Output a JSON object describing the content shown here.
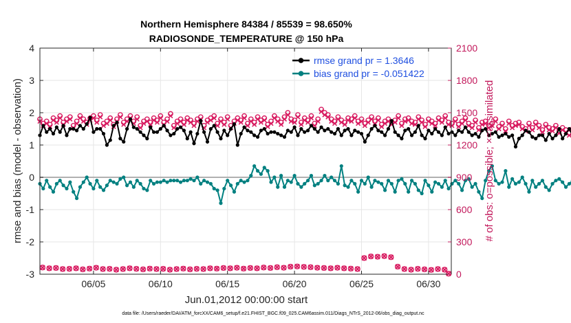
{
  "chart_data": {
    "type": "line",
    "title_line1": "Northern Hemisphere 84384 / 85539 = 98.650%",
    "title_line2": "RADIOSONDE_TEMPERATURE @ 150 hPa",
    "xlabel": "Jun.01,2012 00:00:00 start",
    "ylabel_left": "rmse and bias (model - observation)",
    "ylabel_right": "# of obs: o=possible; ×=assimilated",
    "footer": "data file: /Users/raeder/DAI/ATM_forcXX/CAM6_setup/f.e21.FHIST_BGC.f09_025.CAM6assim.011/Diags_NTrS_2012-06/obs_diag_output.nc",
    "x_range_days": [
      1,
      31.7
    ],
    "ylim_left": [
      -3,
      4
    ],
    "ylim_right": [
      0,
      2100
    ],
    "grid": true,
    "legend_position": "top-right",
    "x_ticks": [
      {
        "day": 5,
        "label": "06/05"
      },
      {
        "day": 10,
        "label": "06/10"
      },
      {
        "day": 15,
        "label": "06/15"
      },
      {
        "day": 20,
        "label": "06/20"
      },
      {
        "day": 25,
        "label": "06/25"
      },
      {
        "day": 30,
        "label": "06/30"
      }
    ],
    "y_ticks_left": [
      {
        "value": 4,
        "label": "4"
      },
      {
        "value": 3,
        "label": "3"
      },
      {
        "value": 2,
        "label": "2"
      },
      {
        "value": 1,
        "label": "1"
      },
      {
        "value": 0,
        "label": "0"
      },
      {
        "value": -1,
        "label": "-1"
      },
      {
        "value": -2,
        "label": "-2"
      },
      {
        "value": -3,
        "label": "-3"
      }
    ],
    "y_ticks_right": [
      {
        "value": 2100,
        "label": "2100"
      },
      {
        "value": 1800,
        "label": "1800"
      },
      {
        "value": 1500,
        "label": "1500"
      },
      {
        "value": 1200,
        "label": "1200"
      },
      {
        "value": 900,
        "label": "900"
      },
      {
        "value": 600,
        "label": "600"
      },
      {
        "value": 300,
        "label": "300"
      },
      {
        "value": 0,
        "label": "0"
      }
    ],
    "legend": [
      {
        "label": "rmse grand pr = 1.3646",
        "color": "#000000"
      },
      {
        "label": "bias grand pr = -0.051422",
        "color": "#008080"
      }
    ],
    "colors": {
      "rmse": "#000000",
      "bias": "#008080",
      "obs": "#d81b60",
      "zero_line": "#b0b0b0"
    },
    "series_x_start_day": 1.0,
    "series_x_step_days": 0.25,
    "rmse": [
      1.3,
      1.6,
      1.4,
      1.5,
      1.35,
      1.55,
      1.4,
      1.6,
      1.3,
      1.5,
      1.5,
      1.45,
      1.6,
      1.5,
      1.65,
      1.85,
      1.4,
      1.5,
      1.5,
      1.35,
      1.0,
      1.15,
      1.6,
      1.7,
      1.2,
      1.1,
      1.5,
      1.8,
      1.55,
      1.5,
      1.4,
      1.3,
      1.2,
      1.55,
      1.4,
      1.4,
      1.5,
      1.6,
      1.45,
      1.3,
      1.35,
      1.5,
      1.55,
      1.45,
      1.2,
      1.4,
      1.05,
      1.35,
      1.75,
      1.4,
      1.1,
      1.5,
      1.6,
      1.4,
      1.2,
      1.45,
      1.3,
      1.5,
      1.65,
      1.0,
      1.35,
      1.55,
      1.45,
      1.4,
      1.3,
      1.25,
      1.45,
      1.5,
      1.35,
      1.4,
      1.4,
      1.35,
      1.3,
      1.25,
      1.45,
      1.4,
      1.55,
      1.3,
      1.5,
      1.4,
      1.45,
      1.6,
      1.5,
      1.4,
      1.55,
      1.45,
      1.5,
      1.4,
      1.35,
      1.5,
      1.3,
      1.45,
      1.5,
      1.3,
      1.45,
      1.4,
      1.35,
      1.1,
      1.3,
      1.5,
      1.6,
      1.45,
      1.4,
      1.3,
      1.5,
      1.75,
      1.4,
      1.3,
      1.2,
      1.45,
      1.5,
      1.3,
      1.4,
      1.6,
      1.3,
      1.2,
      1.45,
      1.35,
      1.5,
      1.4,
      1.3,
      1.55,
      1.35,
      1.4,
      1.3,
      1.45,
      1.4,
      1.55,
      1.4,
      1.3,
      1.35,
      1.25,
      1.45,
      1.5,
      1.3,
      1.35,
      1.4,
      1.25,
      1.3,
      1.35,
      1.25,
      1.3,
      0.95,
      1.2,
      1.3,
      1.45,
      1.4,
      1.25,
      1.2,
      1.3,
      1.3,
      1.15,
      1.35,
      1.2,
      1.3,
      1.5,
      1.2,
      1.35,
      1.5,
      1.3,
      1.0,
      1.25,
      1.15,
      1.1
    ],
    "bias": [
      -0.2,
      -0.35,
      -0.1,
      -0.3,
      -0.45,
      -0.2,
      -0.1,
      -0.25,
      -0.35,
      -0.15,
      -0.45,
      -0.65,
      -0.3,
      -0.15,
      0.0,
      -0.2,
      -0.35,
      -0.1,
      -0.3,
      -0.4,
      -0.25,
      -0.1,
      -0.15,
      -0.2,
      -0.05,
      0.0,
      -0.25,
      -0.15,
      -0.3,
      -0.1,
      -0.2,
      -0.35,
      -0.4,
      -0.1,
      -0.2,
      -0.15,
      -0.15,
      -0.1,
      -0.15,
      -0.1,
      -0.1,
      -0.1,
      -0.15,
      -0.1,
      -0.1,
      -0.05,
      -0.1,
      0.0,
      -0.2,
      -0.1,
      -0.15,
      -0.2,
      -0.35,
      -0.4,
      -0.8,
      -0.35,
      -0.1,
      -0.25,
      -0.45,
      -0.2,
      -0.1,
      -0.15,
      -0.1,
      0.05,
      0.35,
      0.2,
      0.1,
      0.3,
      0.2,
      -0.15,
      0.0,
      -0.3,
      0.05,
      -0.3,
      -0.1,
      -0.15,
      0.05,
      -0.2,
      -0.3,
      -0.2,
      -0.1,
      0.05,
      -0.25,
      -0.2,
      -0.1,
      0.05,
      -0.1,
      0.0,
      -0.1,
      -0.2,
      0.35,
      -0.25,
      -0.3,
      -0.1,
      -0.2,
      -0.45,
      -0.1,
      -0.2,
      0.0,
      -0.3,
      -0.1,
      -0.15,
      -0.2,
      -0.4,
      -0.1,
      -0.2,
      -0.45,
      -0.1,
      -0.05,
      -0.2,
      -0.45,
      -0.1,
      -0.2,
      -0.4,
      -0.5,
      -0.1,
      -0.25,
      -0.45,
      -0.15,
      -0.2,
      -0.3,
      -0.1,
      -0.35,
      -0.2,
      -0.1,
      -0.2,
      -0.4,
      -0.1,
      -0.05,
      -0.3,
      -0.2,
      -0.45,
      -0.65,
      -0.1,
      0.2,
      0.35,
      -0.1,
      -0.2,
      -0.15,
      0.2,
      -0.3,
      -0.05,
      -0.2,
      -0.15,
      0.0,
      -0.2,
      -0.45,
      -0.1,
      -0.3,
      -0.2,
      -0.1,
      -0.3,
      -0.4,
      -0.2,
      -0.1,
      -0.05,
      -0.15,
      -0.3,
      -0.2,
      -0.1,
      0.05,
      -0.35,
      -0.15,
      0.0,
      -0.25,
      0.2,
      -0.3,
      -0.4
    ],
    "obs_possible": [
      1440,
      1400,
      1420,
      1390,
      1450,
      1430,
      1470,
      1410,
      1440,
      1460,
      1380,
      1420,
      1470,
      1440,
      1410,
      1450,
      1470,
      1430,
      1480,
      1400,
      1420,
      1450,
      1390,
      1440,
      1480,
      1410,
      1440,
      1470,
      1420,
      1460,
      1380,
      1420,
      1440,
      1410,
      1450,
      1430,
      1470,
      1410,
      1440,
      1490,
      1380,
      1420,
      1440,
      1410,
      1450,
      1430,
      1400,
      1440,
      1460,
      1380,
      1430,
      1450,
      1470,
      1400,
      1440,
      1410,
      1460,
      1380,
      1420,
      1450,
      1430,
      1470,
      1400,
      1440,
      1410,
      1460,
      1430,
      1450,
      1390,
      1420,
      1470,
      1440,
      1410,
      1460,
      1500,
      1440,
      1430,
      1480,
      1410,
      1450,
      1430,
      1470,
      1400,
      1440,
      1530,
      1500,
      1480,
      1440,
      1420,
      1460,
      1430,
      1410,
      1450,
      1440,
      1470,
      1420,
      1440,
      1400,
      1430,
      1460,
      1420,
      1450,
      1390,
      1420,
      1440,
      1410,
      1430,
      1470,
      1400,
      1440,
      1450,
      1420,
      1410,
      1460,
      1430,
      1390,
      1440,
      1420,
      1400,
      1450,
      1430,
      1470,
      1410,
      1400,
      1440,
      1390,
      1420,
      1450,
      1400,
      1380,
      1430,
      1360,
      1410,
      1420,
      1380,
      1400,
      1440,
      1370,
      1400,
      1350,
      1420,
      1380,
      1400,
      1410,
      1370,
      1350,
      1400,
      1360,
      1410,
      1380,
      1340,
      1390,
      1360,
      1350,
      1380,
      1330,
      1360,
      1340,
      1310,
      1350,
      1320,
      1300,
      1330,
      1310,
      1300,
      1280,
      1270,
      1300
    ],
    "obs_assimilated": [
      1420,
      1380,
      1400,
      1370,
      1430,
      1410,
      1450,
      1390,
      1420,
      1440,
      1360,
      1400,
      1450,
      1420,
      1390,
      1430,
      1450,
      1410,
      1460,
      1380,
      1400,
      1430,
      1370,
      1420,
      1460,
      1390,
      1420,
      1450,
      1400,
      1440,
      1360,
      1400,
      1420,
      1390,
      1430,
      1410,
      1450,
      1390,
      1420,
      1470,
      1360,
      1400,
      1420,
      1390,
      1430,
      1410,
      1380,
      1420,
      1440,
      1360,
      1410,
      1430,
      1450,
      1380,
      1420,
      1390,
      1440,
      1360,
      1400,
      1430,
      1410,
      1450,
      1380,
      1420,
      1390,
      1440,
      1410,
      1430,
      1370,
      1400,
      1450,
      1420,
      1390,
      1440,
      1480,
      1420,
      1410,
      1460,
      1390,
      1430,
      1410,
      1450,
      1380,
      1420,
      1510,
      1480,
      1460,
      1420,
      1400,
      1440,
      1410,
      1390,
      1430,
      1420,
      1450,
      1400,
      1420,
      1380,
      1410,
      1440,
      1400,
      1430,
      1370,
      1400,
      1420,
      1390,
      1410,
      1450,
      1380,
      1420,
      1430,
      1400,
      1390,
      1440,
      1410,
      1370,
      1420,
      1400,
      1380,
      1430,
      1410,
      1450,
      1390,
      1380,
      1420,
      1370,
      1400,
      1430,
      1380,
      1360,
      1410,
      1340,
      1390,
      1400,
      1360,
      1380,
      1420,
      1350,
      1380,
      1330,
      1400,
      1360,
      1380,
      1390,
      1350,
      1330,
      1380,
      1340,
      1390,
      1360,
      1320,
      1370,
      1340,
      1330,
      1360,
      1310,
      1340,
      1320,
      1290,
      1330,
      1300,
      1280,
      1310,
      1290,
      1280,
      1260,
      1250,
      1280
    ],
    "obs_bottom_x": [
      1.2,
      1.7,
      2.2,
      2.7,
      3.2,
      3.7,
      4.2,
      4.7,
      5.2,
      5.7,
      6.2,
      6.7,
      7.2,
      7.7,
      8.2,
      8.7,
      9.2,
      9.7,
      10.2,
      10.7,
      11.2,
      11.7,
      12.2,
      12.7,
      13.2,
      13.7,
      14.2,
      14.7,
      15.2,
      15.7,
      16.2,
      16.7,
      17.2,
      17.7,
      18.2,
      18.7,
      19.2,
      19.7,
      20.2,
      20.7,
      21.2,
      21.7,
      22.2,
      22.7,
      23.2,
      23.7,
      24.2,
      24.7,
      25.2,
      25.7,
      26.2,
      26.7,
      27.2,
      27.7,
      28.2,
      28.7,
      29.2,
      29.7,
      30.2,
      30.7,
      31.2,
      31.5
    ],
    "obs_bottom_y": [
      62,
      55,
      58,
      48,
      50,
      55,
      45,
      52,
      60,
      48,
      50,
      42,
      48,
      55,
      50,
      45,
      52,
      48,
      50,
      42,
      48,
      52,
      45,
      50,
      48,
      55,
      52,
      58,
      55,
      60,
      52,
      58,
      55,
      62,
      58,
      65,
      60,
      70,
      72,
      68,
      65,
      60,
      58,
      55,
      60,
      55,
      52,
      48,
      150,
      165,
      162,
      168,
      158,
      70,
      48,
      42,
      50,
      45,
      40,
      48,
      42,
      5
    ]
  }
}
